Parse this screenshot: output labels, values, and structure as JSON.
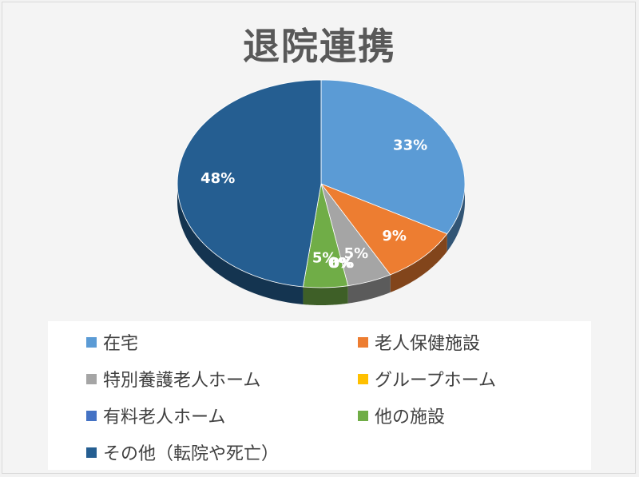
{
  "chart_data": {
    "type": "pie",
    "title": "退院連携",
    "categories": [
      "在宅",
      "老人保健施設",
      "特別養護老人ホーム",
      "グループホーム",
      "有料老人ホーム",
      "他の施設",
      "その他（転院や死亡）"
    ],
    "values": [
      33,
      9,
      5,
      0,
      0,
      5,
      48
    ],
    "value_labels": [
      "33%",
      "9%",
      "5%",
      "0%",
      "0%",
      "5%",
      "48%"
    ],
    "colors": [
      "#5b9bd5",
      "#ed7d31",
      "#a5a5a5",
      "#ffc000",
      "#4472c4",
      "#70ad47",
      "#255e91"
    ],
    "legend_position": "bottom",
    "style": "3d-pie"
  }
}
